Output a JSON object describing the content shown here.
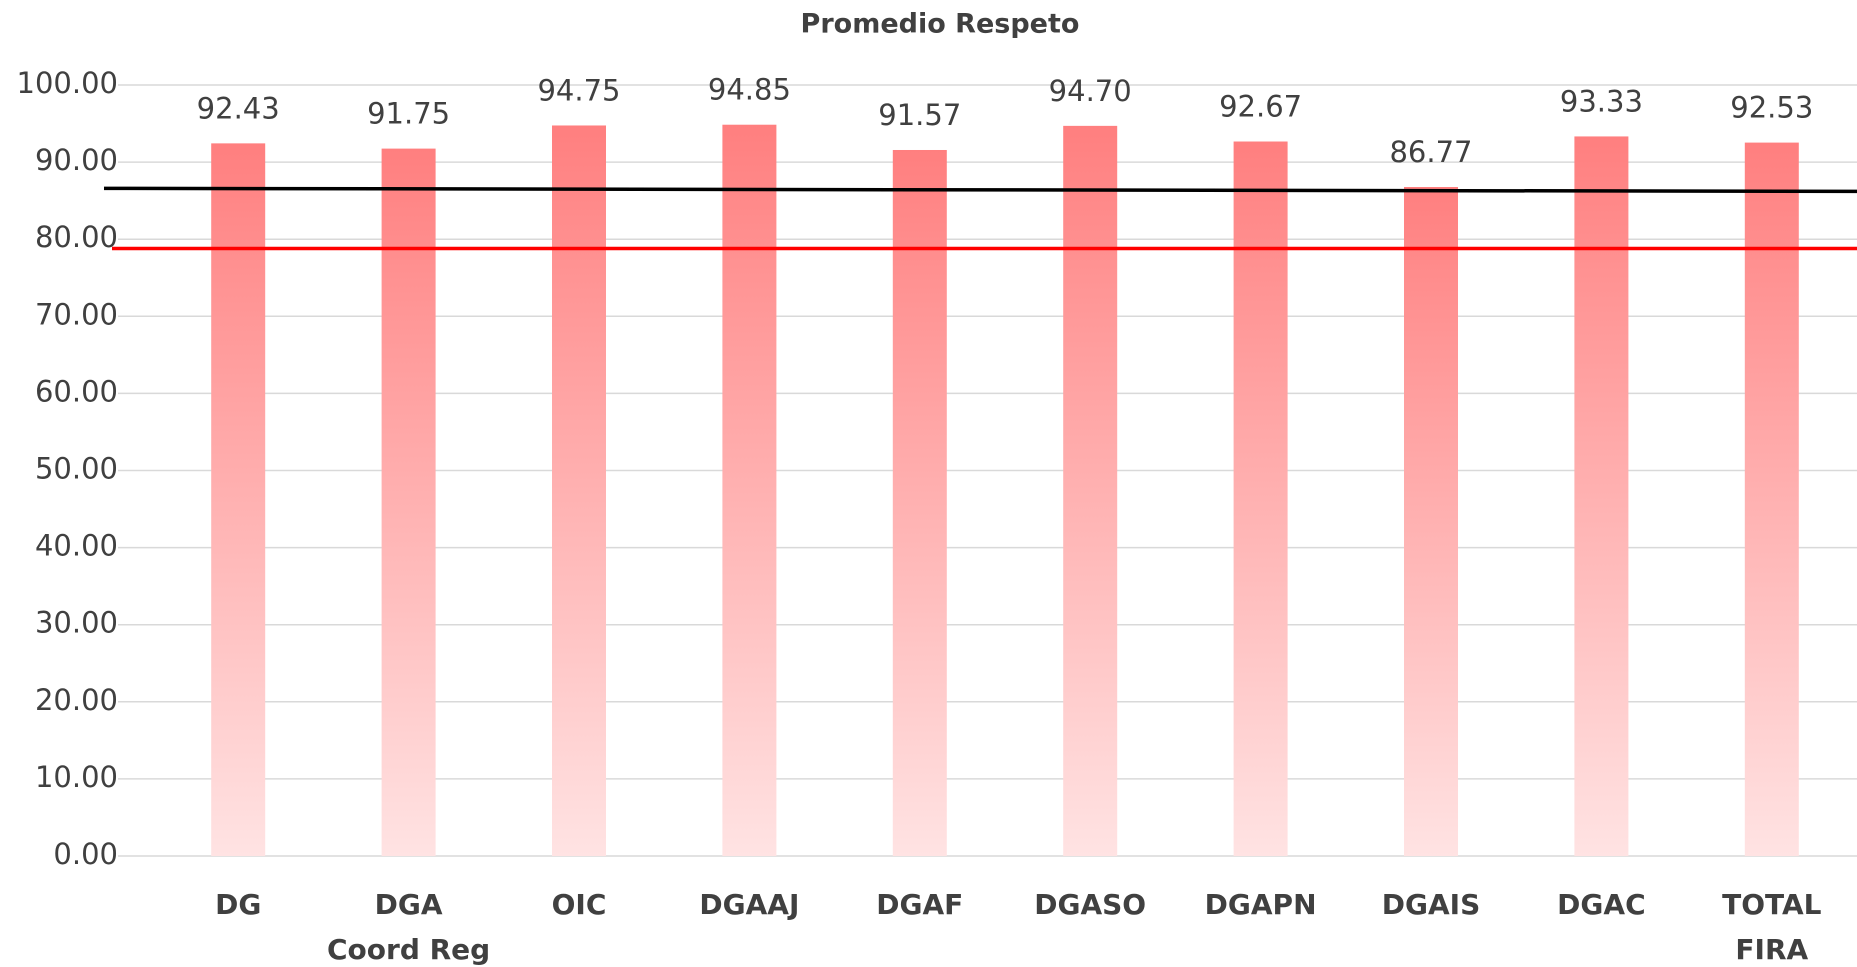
{
  "chart_data": {
    "type": "bar",
    "title": "Promedio Respeto",
    "categories": [
      "DG",
      "DGA\nCoord Reg",
      "OIC",
      "DGAAJ",
      "DGAF",
      "DGASO",
      "DGAPN",
      "DGAIS",
      "DGAC",
      "TOTAL\nFIRA"
    ],
    "values": [
      92.43,
      91.75,
      94.75,
      94.85,
      91.57,
      94.7,
      92.67,
      86.77,
      93.33,
      92.53
    ],
    "value_labels": [
      "92.43",
      "91.75",
      "94.75",
      "94.85",
      "91.57",
      "94.70",
      "92.67",
      "86.77",
      "93.33",
      "92.53"
    ],
    "color": "#ff7f7f",
    "ylim": [
      0,
      100
    ],
    "yticks": [
      {
        "value": 0,
        "label": "0.00"
      },
      {
        "value": 10,
        "label": "10.00"
      },
      {
        "value": 20,
        "label": "20.00"
      },
      {
        "value": 30,
        "label": "30.00"
      },
      {
        "value": 40,
        "label": "40.00"
      },
      {
        "value": 50,
        "label": "50.00"
      },
      {
        "value": 60,
        "label": "60.00"
      },
      {
        "value": 70,
        "label": "70.00"
      },
      {
        "value": 80,
        "label": "80.00"
      },
      {
        "value": 90,
        "label": "90.00"
      },
      {
        "value": 100,
        "label": "100.00"
      }
    ],
    "grid": true,
    "reference_lines": [
      {
        "color": "#000000",
        "start": 86.6,
        "end": 86.2
      },
      {
        "color": "#ff0000",
        "start": 78.8,
        "end": 78.8
      }
    ]
  }
}
